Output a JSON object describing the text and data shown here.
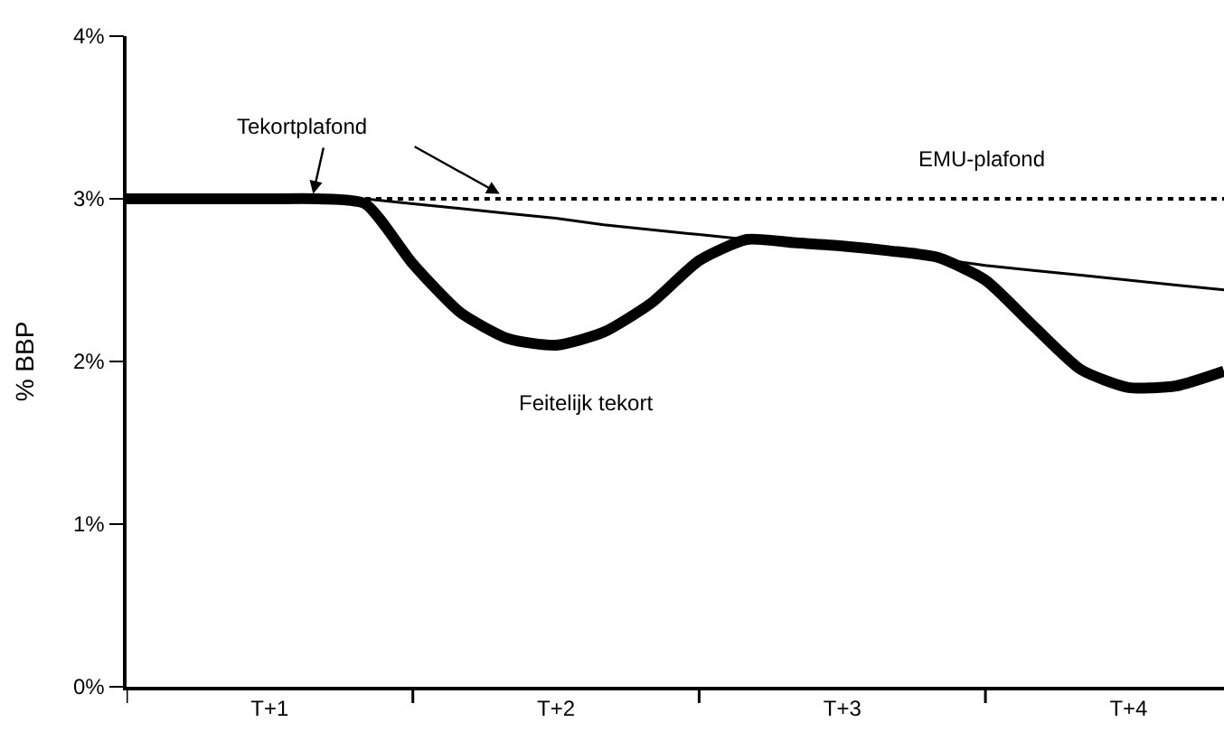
{
  "chart_data": {
    "type": "line",
    "ylabel": "% BBP",
    "categories": [
      null,
      null,
      null,
      "T+1",
      null,
      null,
      null,
      null,
      null,
      "T+2",
      null,
      null,
      null,
      null,
      null,
      "T+3",
      null,
      null,
      null,
      null,
      null,
      "T+4",
      null,
      null
    ],
    "ylim": [
      0,
      4
    ],
    "yticks": [
      {
        "value": 0,
        "label": "0%"
      },
      {
        "value": 1,
        "label": "1%"
      },
      {
        "value": 2,
        "label": "2%"
      },
      {
        "value": 3,
        "label": "3%"
      },
      {
        "value": 4,
        "label": "4%"
      }
    ],
    "legend": false,
    "series": [
      {
        "name": "Feitelijk tekort",
        "color": "#000000",
        "line_style": "solid",
        "values": [
          3,
          3,
          3,
          3,
          3,
          2.97,
          2.6,
          2.3,
          2.14,
          2.1,
          2.18,
          2.36,
          2.62,
          2.75,
          2.73,
          2.71,
          2.68,
          2.64,
          2.5,
          2.22,
          1.95,
          1.84,
          1.85,
          1.94
        ]
      },
      {
        "name": "Tekortplafond",
        "color": "#000000",
        "line_style": "solid",
        "values": [
          null,
          null,
          null,
          null,
          null,
          3.0,
          2.97,
          2.94,
          2.91,
          2.88,
          2.84,
          2.81,
          2.78,
          2.75,
          2.72,
          2.69,
          2.66,
          2.63,
          2.59,
          2.56,
          2.53,
          2.5,
          2.47,
          2.44
        ]
      },
      {
        "name": "EMU-plafond",
        "color": "#000000",
        "line_style": "dotted",
        "values": [
          null,
          null,
          null,
          null,
          null,
          3,
          3,
          3,
          3,
          3,
          3,
          3,
          3,
          3,
          3,
          3,
          3,
          3,
          3,
          3,
          3,
          3,
          3,
          3
        ]
      }
    ]
  }
}
